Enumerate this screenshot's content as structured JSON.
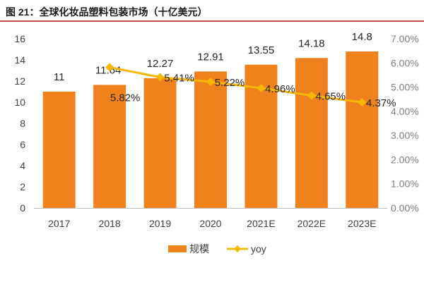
{
  "figure_title": "图 21：全球化妆品塑料包装市场（十亿美元）",
  "colors": {
    "bar": "#f0821e",
    "line": "#f5b800",
    "axis": "#bfbfbf",
    "title_rule": "#c0504d"
  },
  "chart_data": {
    "type": "bar",
    "title": "图 21：全球化妆品塑料包装市场（十亿美元）",
    "categories": [
      "2017",
      "2018",
      "2019",
      "2020",
      "2021E",
      "2022E",
      "2023E"
    ],
    "series": [
      {
        "name": "规模",
        "type": "bar",
        "axis": "left",
        "values": [
          11,
          11.64,
          12.27,
          12.91,
          13.55,
          14.18,
          14.8
        ],
        "labels": [
          "11",
          "11.64",
          "12.27",
          "12.91",
          "13.55",
          "14.18",
          "14.8"
        ]
      },
      {
        "name": "yoy",
        "type": "line",
        "axis": "right",
        "values": [
          null,
          5.82,
          5.41,
          5.22,
          4.96,
          4.65,
          4.37
        ],
        "labels": [
          null,
          "5.82%",
          "5.41%",
          "5.22%",
          "4.96%",
          "4.65%",
          "4.37%"
        ]
      }
    ],
    "left_axis": {
      "ylim": [
        0,
        16
      ],
      "ticks": [
        "0",
        "2",
        "4",
        "6",
        "8",
        "10",
        "12",
        "14",
        "16"
      ]
    },
    "right_axis": {
      "ylim": [
        0,
        7
      ],
      "ticks": [
        "0.00%",
        "1.00%",
        "2.00%",
        "3.00%",
        "4.00%",
        "5.00%",
        "6.00%",
        "7.00%"
      ]
    },
    "legend_position": "bottom",
    "grid": false
  }
}
